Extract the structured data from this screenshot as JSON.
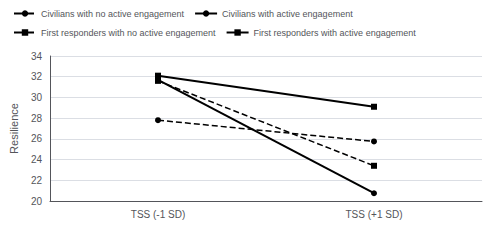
{
  "chart_data": {
    "type": "line",
    "categories": [
      "TSS (-1 SD)",
      "TSS (+1 SD)"
    ],
    "series": [
      {
        "name": "Civilians with no active engagement",
        "values": [
          27.8,
          25.75
        ],
        "color": "#000000",
        "line_style": "dashed",
        "marker": "circle"
      },
      {
        "name": "Civilians with active engagement",
        "values": [
          31.7,
          20.75
        ],
        "color": "#000000",
        "line_style": "solid",
        "marker": "circle"
      },
      {
        "name": "First responders with no active engagement",
        "values": [
          31.6,
          23.4
        ],
        "color": "#000000",
        "line_style": "dashed",
        "marker": "square"
      },
      {
        "name": "First responders with active engagement",
        "values": [
          32.1,
          29.1
        ],
        "color": "#000000",
        "line_style": "solid",
        "marker": "square"
      }
    ],
    "ylabel": "Resilience",
    "ylim": [
      20,
      34
    ],
    "yticks": [
      20,
      22,
      24,
      26,
      28,
      30,
      32,
      34
    ],
    "grid": true,
    "legend": "top"
  }
}
